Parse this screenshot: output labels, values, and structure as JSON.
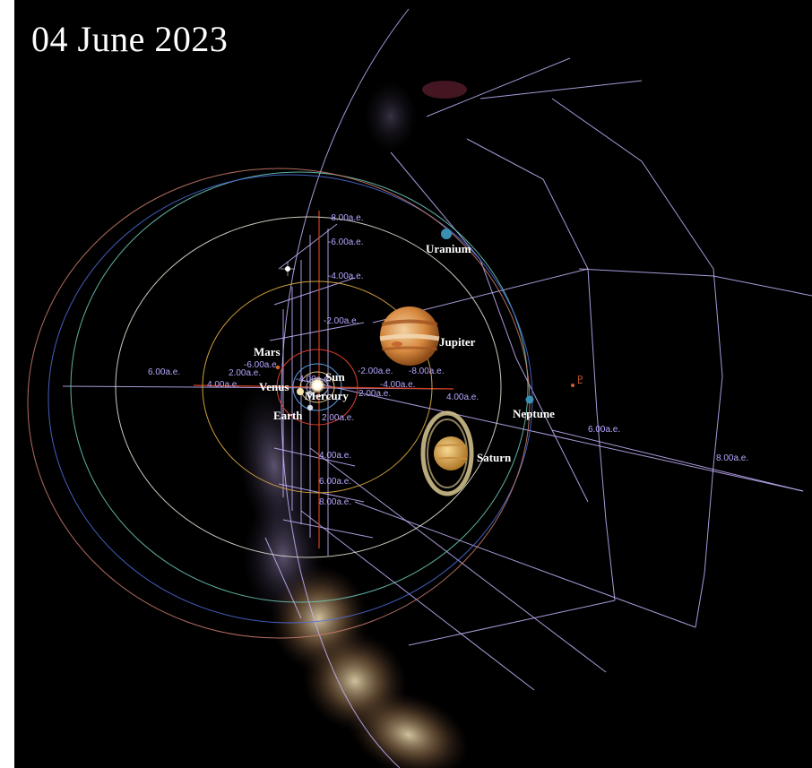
{
  "title": "04 June 2023",
  "colors": {
    "background": "#000000",
    "grid": "#c8b4ff",
    "axis_label": "#b8a6ff",
    "mercury_orbit": "#a8a8c8",
    "venus_orbit": "#e0c080",
    "earth_orbit": "#5aa0e0",
    "mars_orbit": "#e04030",
    "jupiter_orbit": "#d0a040",
    "saturn_orbit": "#e0e0d0",
    "uranus_orbit": "#70d0c0",
    "neptune_orbit": "#5070e0",
    "pluto_orbit": "#d08070"
  },
  "planets": [
    {
      "id": "sun",
      "label": "Sun",
      "color": "#fff7e0"
    },
    {
      "id": "mercury",
      "label": "Mercury",
      "color": "#c8c8c8"
    },
    {
      "id": "venus",
      "label": "Venus",
      "color": "#f5e6b0"
    },
    {
      "id": "earth",
      "label": "Earth",
      "color": "#d8dce8"
    },
    {
      "id": "mars",
      "label": "Mars",
      "color": "#d86030"
    },
    {
      "id": "jupiter",
      "label": "Jupiter",
      "color": "#d89050"
    },
    {
      "id": "saturn",
      "label": "Saturn",
      "color": "#e8b860"
    },
    {
      "id": "uranus",
      "label": "Uranium",
      "color": "#3b8fb5"
    },
    {
      "id": "neptune",
      "label": "Neptune",
      "color": "#3b8fb5"
    }
  ],
  "pluto_symbol": "♇",
  "axis_labels": {
    "vertical_up": [
      "-8.00a.e.",
      "-6.00a.e.",
      "-4.00a.e.",
      "-2.00a.e."
    ],
    "vertical_down": [
      "2.00a.e.",
      "4.00a.e.",
      "6.00a.e.",
      "8.00a.e."
    ],
    "horizontal_left": [
      "6.00a.e.",
      "4.00a.e.",
      "2.00a.e.",
      "-6.00a.e.",
      "-4.00a.e."
    ],
    "horizontal_right": [
      "-2.00a.e.",
      "-8.00a.e.",
      "-4.00a.e.",
      "2.00a.e.",
      "4.00a.e.",
      "6.00a.e.",
      "8.00a.e."
    ]
  }
}
